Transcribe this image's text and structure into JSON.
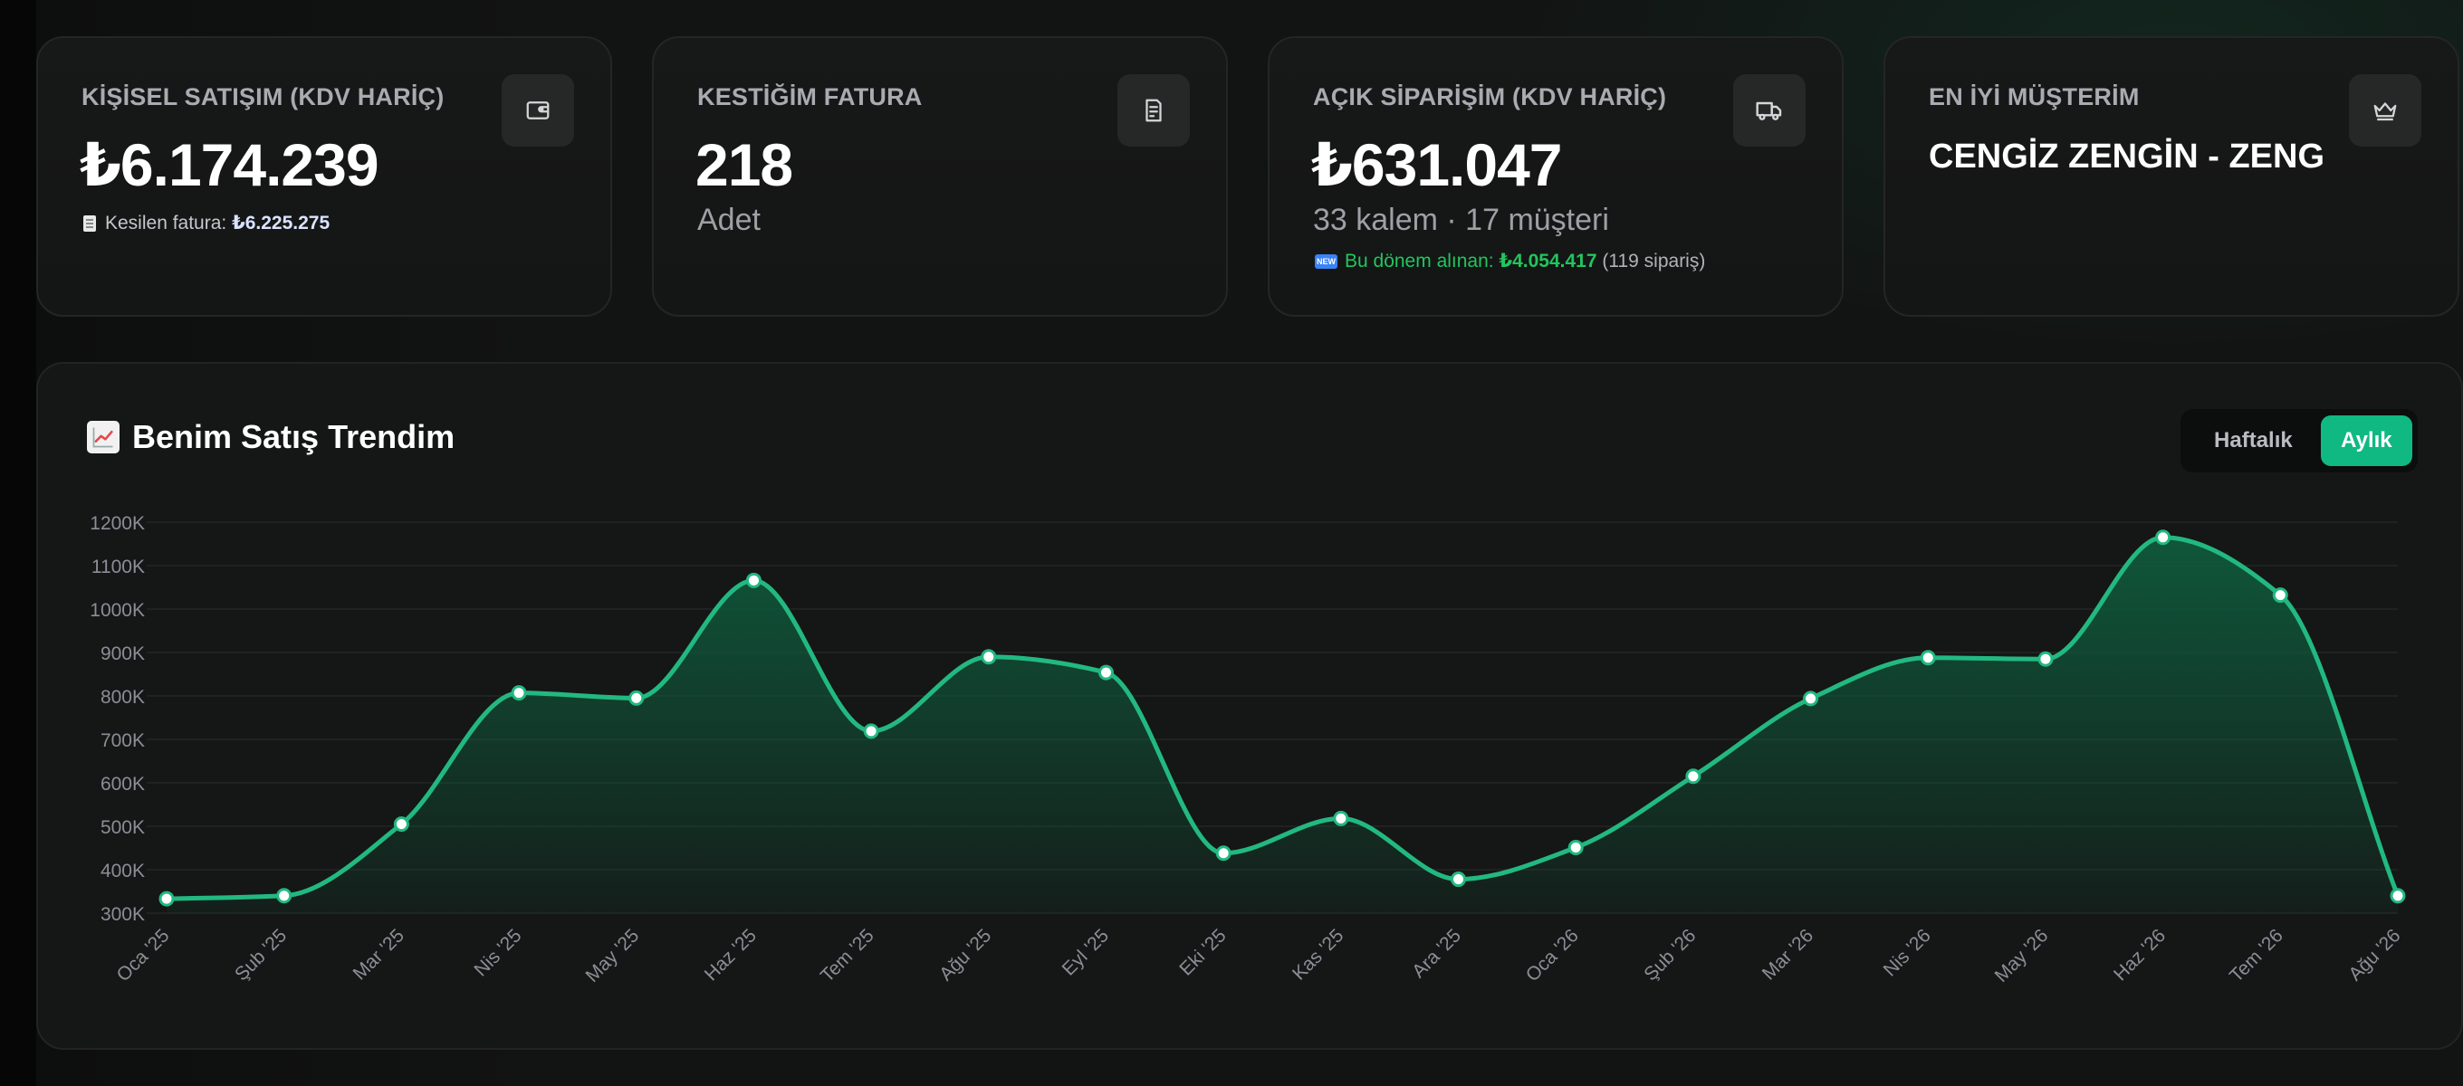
{
  "kpis": [
    {
      "label": "KİŞİSEL SATIŞIM (KDV HARİÇ)",
      "icon": "wallet-icon",
      "value": "₺6.174.239",
      "note_prefix": "Kesilen fatura:",
      "note_value": "₺6.225.275"
    },
    {
      "label": "KESTİĞİM FATURA",
      "icon": "receipt-icon",
      "value": "218",
      "sub": "Adet"
    },
    {
      "label": "AÇIK SİPARİŞİM (KDV HARİÇ)",
      "icon": "truck-icon",
      "value": "₺631.047",
      "sub": "33 kalem · 17 müşteri",
      "badge": "NEW",
      "note_prefix": "Bu dönem alınan:",
      "note_value": "₺4.054.417",
      "note_suffix": "(119 sipariş)"
    },
    {
      "label": "EN İYİ MÜŞTERİM",
      "icon": "crown-icon",
      "value": "CENGİZ ZENGİN - ZENG"
    }
  ],
  "chart": {
    "title": "Benim Satış Trendim",
    "title_icon": "chart-increasing-icon",
    "toggle": {
      "weekly_label": "Haftalık",
      "monthly_label": "Aylık",
      "selected": "Aylık"
    }
  },
  "chart_data": {
    "type": "area",
    "title": "Benim Satış Trendim",
    "categories": [
      "Oca '25",
      "Şub '25",
      "Mar '25",
      "Nis '25",
      "May '25",
      "Haz '25",
      "Tem '25",
      "Ağu '25",
      "Eyl '25",
      "Eki '25",
      "Kas '25",
      "Ara '25",
      "Oca '26",
      "Şub '26",
      "Mar '26",
      "Nis '26",
      "May '26",
      "Haz '26",
      "Tem '26",
      "Ağu '26"
    ],
    "values": [
      333000,
      340000,
      505000,
      807000,
      795000,
      1066000,
      719000,
      890000,
      854000,
      438000,
      518000,
      378000,
      451000,
      615000,
      794000,
      888000,
      885000,
      1165000,
      1032000,
      340000
    ],
    "y_ticks": [
      "300K",
      "400K",
      "500K",
      "600K",
      "700K",
      "800K",
      "900K",
      "1000K",
      "1100K",
      "1200K"
    ],
    "ylim": [
      300000,
      1200000
    ],
    "grid": true,
    "colors": {
      "line": "#22b981",
      "fill_top": "#0f5a3c",
      "point": "#ffffff"
    }
  }
}
